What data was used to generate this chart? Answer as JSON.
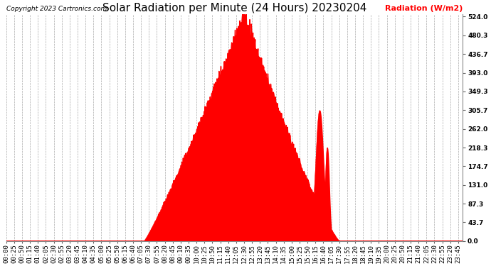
{
  "title": "Solar Radiation per Minute (24 Hours) 20230204",
  "copyright_text": "Copyright 2023 Cartronics.com",
  "ylabel": "Radiation (W/m2)",
  "ylabel_color": "#FF0000",
  "background_color": "#FFFFFF",
  "plot_bg_color": "#FFFFFF",
  "fill_color": "#FF0000",
  "line_color": "#FF0000",
  "dashed_line_color": "#FF0000",
  "grid_color": "#AAAAAA",
  "ytick_labels": [
    0.0,
    43.7,
    87.3,
    131.0,
    174.7,
    218.3,
    262.0,
    305.7,
    349.3,
    393.0,
    436.7,
    480.3,
    524.0
  ],
  "ymax": 524.0,
  "ymin": 0.0,
  "total_minutes": 1440,
  "sunrise_minute": 435,
  "sunset_minute": 1050,
  "peak_minute": 750,
  "peak_value": 524.0,
  "xtick_step_minutes": 25,
  "title_fontsize": 11,
  "axis_fontsize": 8,
  "tick_fontsize": 6.5,
  "copyright_fontsize": 6.5
}
